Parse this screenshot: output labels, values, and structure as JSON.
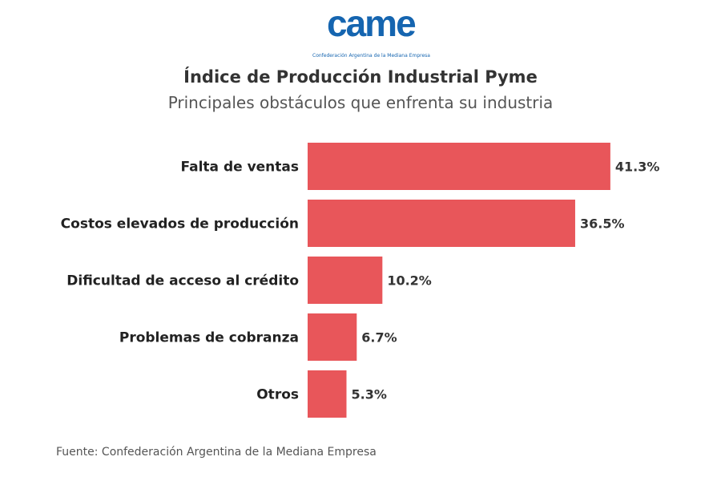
{
  "logo": {
    "text": "came",
    "subtitle": "Confederación Argentina de la Mediana Empresa"
  },
  "chart_data": {
    "type": "bar",
    "orientation": "horizontal",
    "title": "Índice de Producción Industrial Pyme",
    "subtitle": "Principales obstáculos que enfrenta su industria",
    "categories": [
      "Falta de ventas",
      "Costos elevados de producción",
      "Dificultad de acceso al crédito",
      "Problemas de cobranza",
      "Otros"
    ],
    "values": [
      41.3,
      36.5,
      10.2,
      6.7,
      5.3
    ],
    "labels": [
      "41.3%",
      "36.5%",
      "10.2%",
      "6.7%",
      "5.3%"
    ],
    "unit": "%",
    "bar_color": "#e8565a",
    "grid": false
  },
  "source": "Fuente: Confederación Argentina de la Mediana Empresa"
}
